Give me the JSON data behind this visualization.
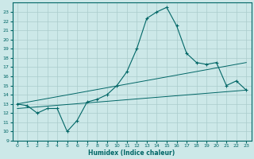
{
  "xlabel": "Humidex (Indice chaleur)",
  "bg_color": "#cce8e8",
  "grid_color": "#aacccc",
  "line_color": "#006666",
  "xlim": [
    -0.5,
    23.5
  ],
  "ylim": [
    9,
    24
  ],
  "xticks": [
    0,
    1,
    2,
    3,
    4,
    5,
    6,
    7,
    8,
    9,
    10,
    11,
    12,
    13,
    14,
    15,
    16,
    17,
    18,
    19,
    20,
    21,
    22,
    23
  ],
  "yticks": [
    9,
    10,
    11,
    12,
    13,
    14,
    15,
    16,
    17,
    18,
    19,
    20,
    21,
    22,
    23
  ],
  "series1_x": [
    0,
    1,
    2,
    3,
    4,
    5,
    6,
    7,
    8,
    9,
    10,
    11,
    12,
    13,
    14,
    15,
    16,
    17,
    18,
    19,
    20,
    21,
    22,
    23
  ],
  "series1_y": [
    13.0,
    12.8,
    12.0,
    12.5,
    12.5,
    10.0,
    11.2,
    13.2,
    13.5,
    14.0,
    15.0,
    16.5,
    19.0,
    22.3,
    23.0,
    23.5,
    21.5,
    18.5,
    17.5,
    17.3,
    17.5,
    15.0,
    15.5,
    14.5
  ],
  "series2_x": [
    0,
    23
  ],
  "series2_y": [
    13.0,
    17.5
  ],
  "series3_x": [
    0,
    23
  ],
  "series3_y": [
    12.5,
    14.5
  ]
}
